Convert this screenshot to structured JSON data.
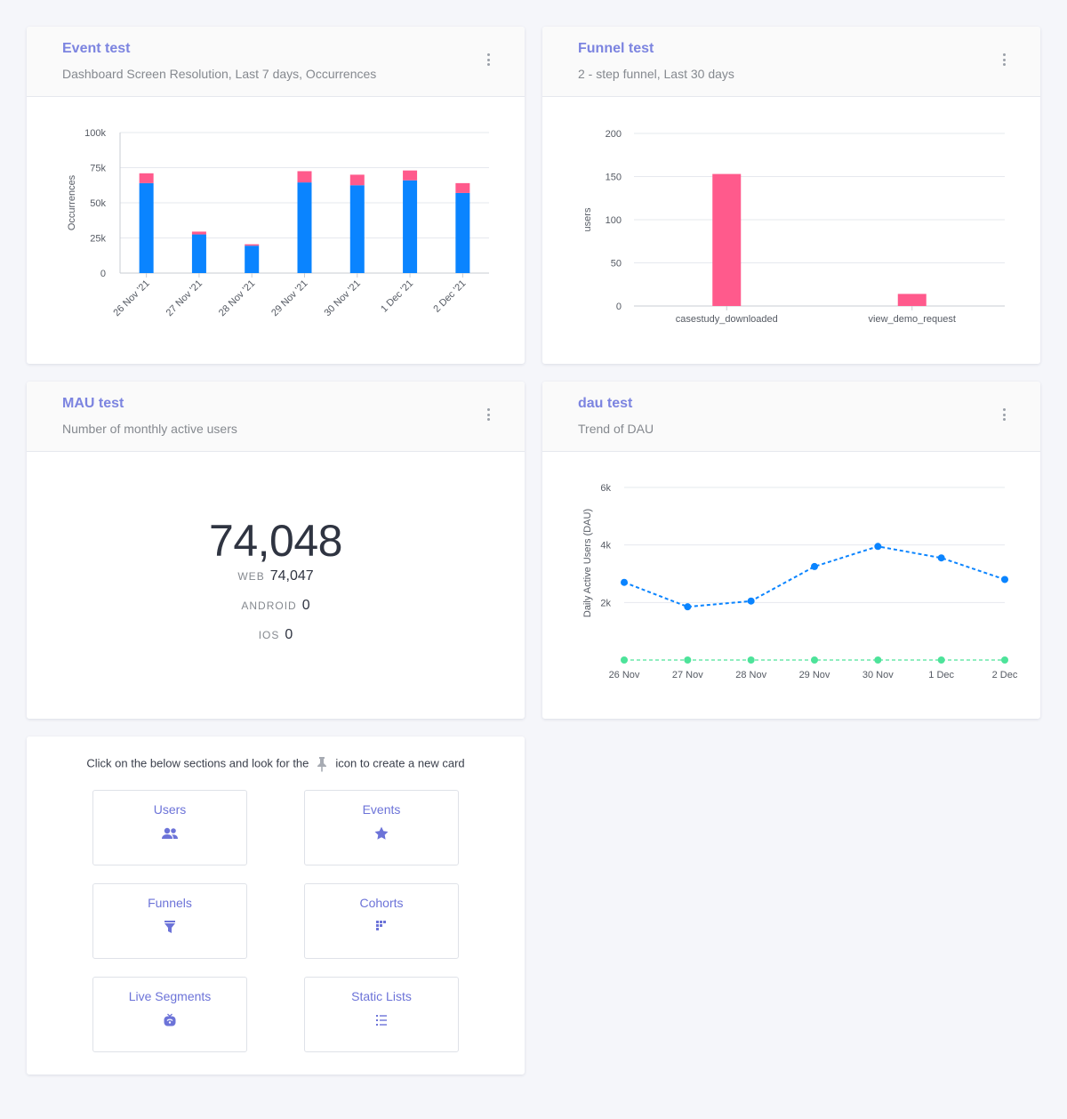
{
  "cards": {
    "event": {
      "title": "Event test",
      "subtitle": "Dashboard Screen Resolution, Last 7 days, Occurrences"
    },
    "funnel": {
      "title": "Funnel test",
      "subtitle": "2 - step funnel, Last 30 days"
    },
    "mau": {
      "title": "MAU test",
      "subtitle": "Number of monthly active users",
      "total": "74,048",
      "platforms": [
        {
          "label": "WEB",
          "value": "74,047"
        },
        {
          "label": "ANDROID",
          "value": "0"
        },
        {
          "label": "IOS",
          "value": "0"
        }
      ]
    },
    "dau": {
      "title": "dau test",
      "subtitle": "Trend of DAU"
    }
  },
  "create_card": {
    "hint_before": "Click on the below sections and look for the",
    "hint_after": "icon to create a new card",
    "tiles": [
      {
        "label": "Users",
        "icon": "users-icon"
      },
      {
        "label": "Events",
        "icon": "events-icon"
      },
      {
        "label": "Funnels",
        "icon": "funnel-icon"
      },
      {
        "label": "Cohorts",
        "icon": "cohorts-icon"
      },
      {
        "label": "Live Segments",
        "icon": "live-segments-icon"
      },
      {
        "label": "Static Lists",
        "icon": "list-icon"
      }
    ]
  },
  "colors": {
    "accent": "#7c84e0",
    "blue": "#0a84ff",
    "pink": "#ff5a8c",
    "green": "#4de39a"
  },
  "chart_data": [
    {
      "type": "bar",
      "stacked": true,
      "categories": [
        "26 Nov '21",
        "27 Nov '21",
        "28 Nov '21",
        "29 Nov '21",
        "30 Nov '21",
        "1 Dec '21",
        "2 Dec '21"
      ],
      "series": [
        {
          "name": "blue",
          "color": "#0a84ff",
          "values": [
            64000,
            27500,
            19500,
            64500,
            62500,
            66000,
            57000
          ]
        },
        {
          "name": "pink",
          "color": "#ff5a8c",
          "values": [
            7000,
            2000,
            1000,
            8000,
            7500,
            7000,
            7000
          ]
        }
      ],
      "ylabel": "Occurrences",
      "yticks": [
        "0",
        "25k",
        "50k",
        "75k",
        "100k"
      ],
      "ylim": [
        0,
        100000
      ]
    },
    {
      "type": "bar",
      "categories": [
        "casestudy_downloaded",
        "view_demo_request"
      ],
      "values": [
        153,
        14
      ],
      "color": "#ff5a8c",
      "ylabel": "users",
      "yticks": [
        "0",
        "50",
        "100",
        "150",
        "200"
      ],
      "ylim": [
        0,
        200
      ]
    },
    {
      "type": "line",
      "categories": [
        "26 Nov",
        "27 Nov",
        "28 Nov",
        "29 Nov",
        "30 Nov",
        "1 Dec",
        "2 Dec"
      ],
      "series": [
        {
          "name": "blue",
          "color": "#0a84ff",
          "values": [
            2700,
            1850,
            2050,
            3250,
            3950,
            3550,
            2800
          ]
        },
        {
          "name": "green",
          "color": "#4de39a",
          "values": [
            0,
            0,
            0,
            0,
            0,
            0,
            0
          ]
        }
      ],
      "ylabel": "Daily Active Users (DAU)",
      "yticks": [
        "2k",
        "4k",
        "6k"
      ],
      "ylim": [
        0,
        6000
      ]
    }
  ]
}
